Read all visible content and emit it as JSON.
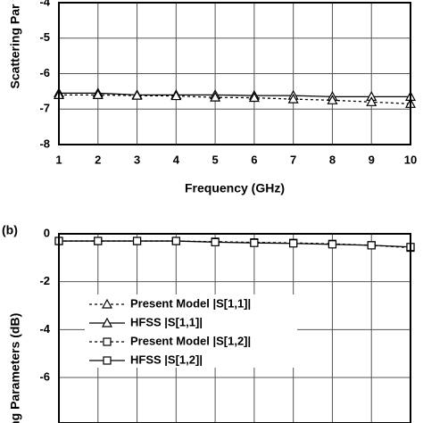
{
  "chart_data": [
    {
      "type": "line",
      "panel": null,
      "ylabel": "Scattering Par",
      "xlabel": "Frequency (GHz)",
      "x": [
        1,
        2,
        3,
        4,
        5,
        6,
        7,
        8,
        9,
        10
      ],
      "xlim": [
        1,
        10
      ],
      "xticks": [
        1,
        2,
        3,
        4,
        5,
        6,
        7,
        8,
        9,
        10
      ],
      "ylim": [
        -8,
        -4
      ],
      "yticks": [
        -8,
        -7,
        -6,
        -5,
        -4
      ],
      "grid": true,
      "series": [
        {
          "color": "#000000",
          "dash": false,
          "marker": "triangle",
          "values": [
            -6.55,
            -6.55,
            -6.6,
            -6.6,
            -6.6,
            -6.62,
            -6.62,
            -6.65,
            -6.65,
            -6.65
          ]
        },
        {
          "color": "#000000",
          "dash": true,
          "marker": "triangle",
          "values": [
            -6.6,
            -6.6,
            -6.62,
            -6.63,
            -6.67,
            -6.68,
            -6.72,
            -6.75,
            -6.8,
            -6.85
          ]
        }
      ]
    },
    {
      "type": "line",
      "panel": "(b)",
      "ylabel": "ring Parameters (dB)",
      "x": [
        1,
        2,
        3,
        4,
        5,
        6,
        7,
        8,
        9,
        10
      ],
      "xlim": [
        1,
        10
      ],
      "xticks": [
        1,
        2,
        3,
        4,
        5,
        6,
        7,
        8,
        9,
        10
      ],
      "ylim": [
        -7.9,
        0
      ],
      "yticks": [
        -6,
        -4,
        -2,
        0
      ],
      "grid": true,
      "legend": "center-left",
      "series": [
        {
          "name": "Present Model |S[1,1]|",
          "color": "#000000",
          "dash": true,
          "marker": "triangle",
          "values": [
            null,
            null,
            null,
            null,
            null,
            null,
            null,
            null,
            null,
            null
          ]
        },
        {
          "name": "HFSS |S[1,1]|",
          "color": "#000000",
          "dash": false,
          "marker": "triangle",
          "values": [
            null,
            null,
            null,
            null,
            null,
            null,
            null,
            null,
            null,
            null
          ]
        },
        {
          "name": "Present Model |S[1,2]|",
          "color": "#000000",
          "dash": true,
          "marker": "square",
          "values": [
            -0.3,
            -0.3,
            -0.3,
            -0.3,
            -0.33,
            -0.36,
            -0.38,
            -0.42,
            -0.48,
            -0.58
          ]
        },
        {
          "name": "HFSS |S[1,2]|",
          "color": "#000000",
          "dash": false,
          "marker": "square",
          "values": [
            -0.3,
            -0.3,
            -0.3,
            -0.3,
            -0.35,
            -0.38,
            -0.4,
            -0.44,
            -0.48,
            -0.55
          ]
        }
      ]
    }
  ]
}
